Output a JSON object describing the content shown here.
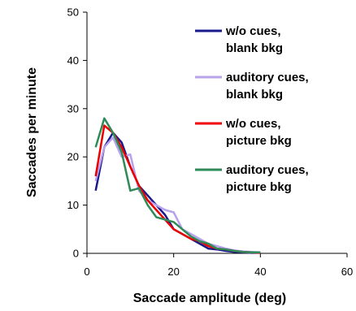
{
  "chart_data": {
    "type": "line",
    "title": "",
    "xlabel": "Saccade amplitude (deg)",
    "ylabel": "Saccades per minute",
    "xlim": [
      0,
      60
    ],
    "ylim": [
      0,
      50
    ],
    "xticks": [
      "0",
      "20",
      "40",
      "60"
    ],
    "yticks": [
      "0",
      "10",
      "20",
      "30",
      "40",
      "50"
    ],
    "grid": false,
    "legend": "top-right",
    "series": [
      {
        "name_lines": [
          "w/o cues,",
          "blank bkg"
        ],
        "color": "#1a1a8c",
        "x": [
          2,
          4,
          6,
          8,
          10,
          12,
          14,
          16,
          18,
          20,
          22,
          24,
          26,
          28,
          30,
          32,
          34,
          36,
          38,
          40
        ],
        "y": [
          13,
          22,
          25,
          23,
          18,
          14,
          12,
          10,
          8,
          5,
          4,
          3,
          2,
          1,
          0.8,
          0.5,
          0.3,
          0.2,
          0.1,
          0.1
        ]
      },
      {
        "name_lines": [
          "auditory cues,",
          "blank bkg"
        ],
        "color": "#b8a2ee",
        "x": [
          2,
          4,
          6,
          8,
          10,
          12,
          14,
          16,
          18,
          20,
          22,
          24,
          26,
          28,
          30,
          32,
          34,
          36,
          38,
          40
        ],
        "y": [
          15,
          22,
          24,
          20,
          20.5,
          13,
          11,
          10,
          9,
          8.5,
          5,
          4,
          3,
          2,
          1.5,
          1,
          0.6,
          0.4,
          0.3,
          0.2
        ]
      },
      {
        "name_lines": [
          "w/o cues,",
          "picture bkg"
        ],
        "color": "#ee0000",
        "x": [
          2,
          4,
          6,
          8,
          10,
          12,
          14,
          16,
          18,
          20,
          22,
          24,
          26,
          28,
          30,
          32,
          34,
          36,
          38,
          40
        ],
        "y": [
          16,
          26.5,
          25,
          22,
          18,
          14,
          11,
          9,
          7,
          5,
          4,
          3,
          2.5,
          1.5,
          1,
          0.8,
          0.5,
          0.3,
          0.2,
          0.1
        ]
      },
      {
        "name_lines": [
          "auditory cues,",
          "picture bkg"
        ],
        "color": "#2e8b57",
        "x": [
          2,
          4,
          6,
          8,
          10,
          12,
          14,
          16,
          18,
          20,
          22,
          24,
          26,
          28,
          30,
          32,
          34,
          36,
          38,
          40
        ],
        "y": [
          22,
          28,
          25,
          21,
          13,
          13.5,
          10,
          7.5,
          7,
          6.5,
          5,
          3.5,
          2.5,
          2,
          1,
          0.8,
          0.5,
          0.3,
          0.2,
          0.2
        ]
      }
    ]
  }
}
